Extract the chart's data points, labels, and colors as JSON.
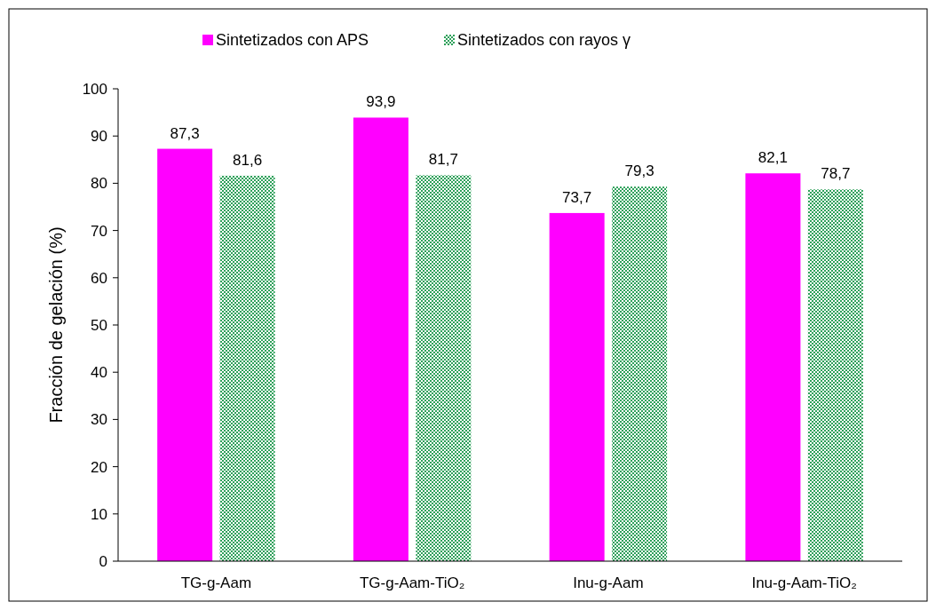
{
  "chart_data": {
    "type": "bar",
    "ylabel": "Fracción  de gelación (%)",
    "categories": [
      "TG-g-Aam",
      "TG-g-Aam-TiO₂",
      "Inu-g-Aam",
      "Inu-g-Aam-TiO₂"
    ],
    "series": [
      {
        "name": "Sintetizados con APS",
        "color": "#ff00ff",
        "values": [
          87.3,
          93.9,
          73.7,
          82.1
        ],
        "value_labels": [
          "87,3",
          "93,9",
          "73,7",
          "82,1"
        ]
      },
      {
        "name": "Sintetizados con rayos γ",
        "color": "#2ea05a",
        "values": [
          81.6,
          81.7,
          79.3,
          78.7
        ],
        "value_labels": [
          "81,6",
          "81,7",
          "79,3",
          "78,7"
        ]
      }
    ],
    "ylim": [
      0,
      100
    ],
    "yticks": [
      0,
      10,
      20,
      30,
      40,
      50,
      60,
      70,
      80,
      90,
      100
    ],
    "legend": "top",
    "grid": false
  }
}
